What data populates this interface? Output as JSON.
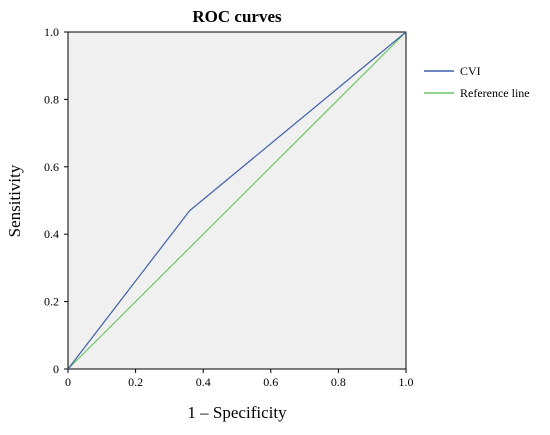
{
  "chart_data": {
    "type": "line",
    "title": "ROC curves",
    "xlabel": "1 – Specificity",
    "ylabel": "Sensitivity",
    "xlim": [
      0,
      1
    ],
    "ylim": [
      0,
      1
    ],
    "x_ticks": [
      "0",
      "0.2",
      "0.4",
      "0.6",
      "0.8",
      "1.0"
    ],
    "y_ticks": [
      "0",
      "0.2",
      "0.4",
      "0.6",
      "0.8",
      "1.0"
    ],
    "grid": false,
    "legend_position": "right",
    "background_color": "#f0f0f0",
    "series": [
      {
        "name": "CVI",
        "color": "#3f5fa8",
        "x": [
          0,
          0.36,
          1
        ],
        "y": [
          0,
          0.47,
          1
        ]
      },
      {
        "name": "Reference line",
        "color": "#6cc765",
        "x": [
          0,
          1
        ],
        "y": [
          0,
          1
        ]
      }
    ]
  }
}
